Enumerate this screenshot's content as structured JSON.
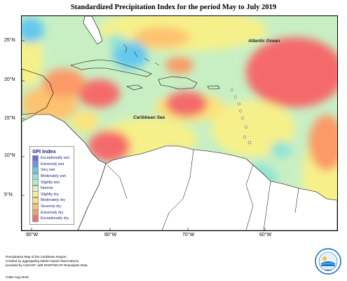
{
  "title": "Standardized Precipitation Index for the period May to July 2019",
  "lat_labels": [
    "25°N",
    "20°N",
    "15°N",
    "10°N",
    "5°N"
  ],
  "lon_labels": [
    "90°W",
    "80°W",
    "70°W",
    "60°W"
  ],
  "ocean_labels": {
    "atlantic": "Atlantic Ocean",
    "caribbean": "Caribbean Sea"
  },
  "legend": {
    "title": "SPI Index",
    "items": [
      {
        "label": "Exceptionally wet",
        "color": "#6a6ee0"
      },
      {
        "label": "Extremely wet",
        "color": "#5a9ae8"
      },
      {
        "label": "Very wet",
        "color": "#63c8ee"
      },
      {
        "label": "Moderately wet",
        "color": "#8fe3d6"
      },
      {
        "label": "Slightly wet",
        "color": "#b8ecbd"
      },
      {
        "label": "Normal",
        "color": "#d9f3c4"
      },
      {
        "label": "Slightly dry",
        "color": "#f6f08a"
      },
      {
        "label": "Moderately dry",
        "color": "#fce37a"
      },
      {
        "label": "Severely dry",
        "color": "#fdc26f"
      },
      {
        "label": "Extremely dry",
        "color": "#fb9a66"
      },
      {
        "label": "Exceptionally dry",
        "color": "#f46b6b"
      }
    ]
  },
  "footer": {
    "line1": "Precipitation Map of the Caribbean Region.",
    "line2": "Created by aggregating station based observations,",
    "line3": "provided by CariCOF, with NCEP/NCAR Reanalysis Data.",
    "credit": "CIMH Aug-2019"
  },
  "logo_text": "CIMH"
}
